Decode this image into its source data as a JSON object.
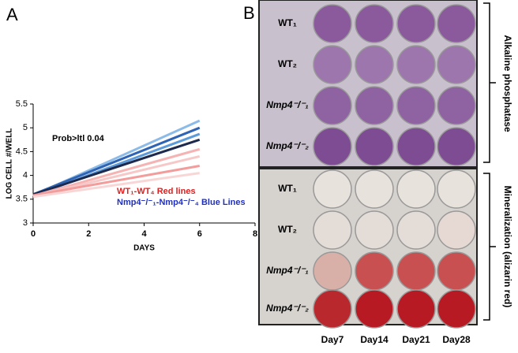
{
  "panel_labels": [
    "A",
    "B"
  ],
  "chart_data": {
    "type": "line",
    "xlabel": "DAYS",
    "ylabel": "LOG CELL #/WELL",
    "annotation": "Prob>ltl 0.04",
    "x": [
      0,
      6
    ],
    "series": [
      {
        "color": "#8cbbe8",
        "values": [
          3.58,
          5.15
        ]
      },
      {
        "color": "#2f63b4",
        "values": [
          3.6,
          5.0
        ]
      },
      {
        "color": "#5d9ad8",
        "values": [
          3.57,
          4.87
        ]
      },
      {
        "color": "#1d2a4d",
        "values": [
          3.6,
          4.75
        ]
      },
      {
        "color": "#f5b3b3",
        "values": [
          3.57,
          4.55
        ]
      },
      {
        "color": "#f7c8c8",
        "values": [
          3.56,
          4.4
        ]
      },
      {
        "color": "#f29c9c",
        "values": [
          3.58,
          4.2
        ]
      },
      {
        "color": "#f9d6d6",
        "values": [
          3.55,
          4.05
        ]
      }
    ],
    "legend": [
      {
        "text": "WT₁-WT₄ Red lines",
        "color": "#e02020"
      },
      {
        "text": "Nmp4⁻/⁻₁-Nmp4⁻/⁻₄ Blue Lines",
        "color": "#2030c0"
      }
    ],
    "xlim": [
      0,
      8
    ],
    "xticks": [
      0,
      2,
      4,
      6,
      8
    ],
    "ylim": [
      3,
      5.5
    ],
    "yticks": [
      3,
      3.5,
      4,
      4.5,
      5,
      5.5
    ]
  },
  "photo": {
    "rows": [
      "WT₁",
      "WT₂",
      "Nmp4⁻/⁻₁",
      "Nmp4⁻/⁻₂"
    ],
    "columns": [
      "Day7",
      "Day14",
      "Day21",
      "Day28"
    ],
    "sections": [
      "Alkaline phosphatase",
      "Mineralization (alizarin red)"
    ]
  }
}
